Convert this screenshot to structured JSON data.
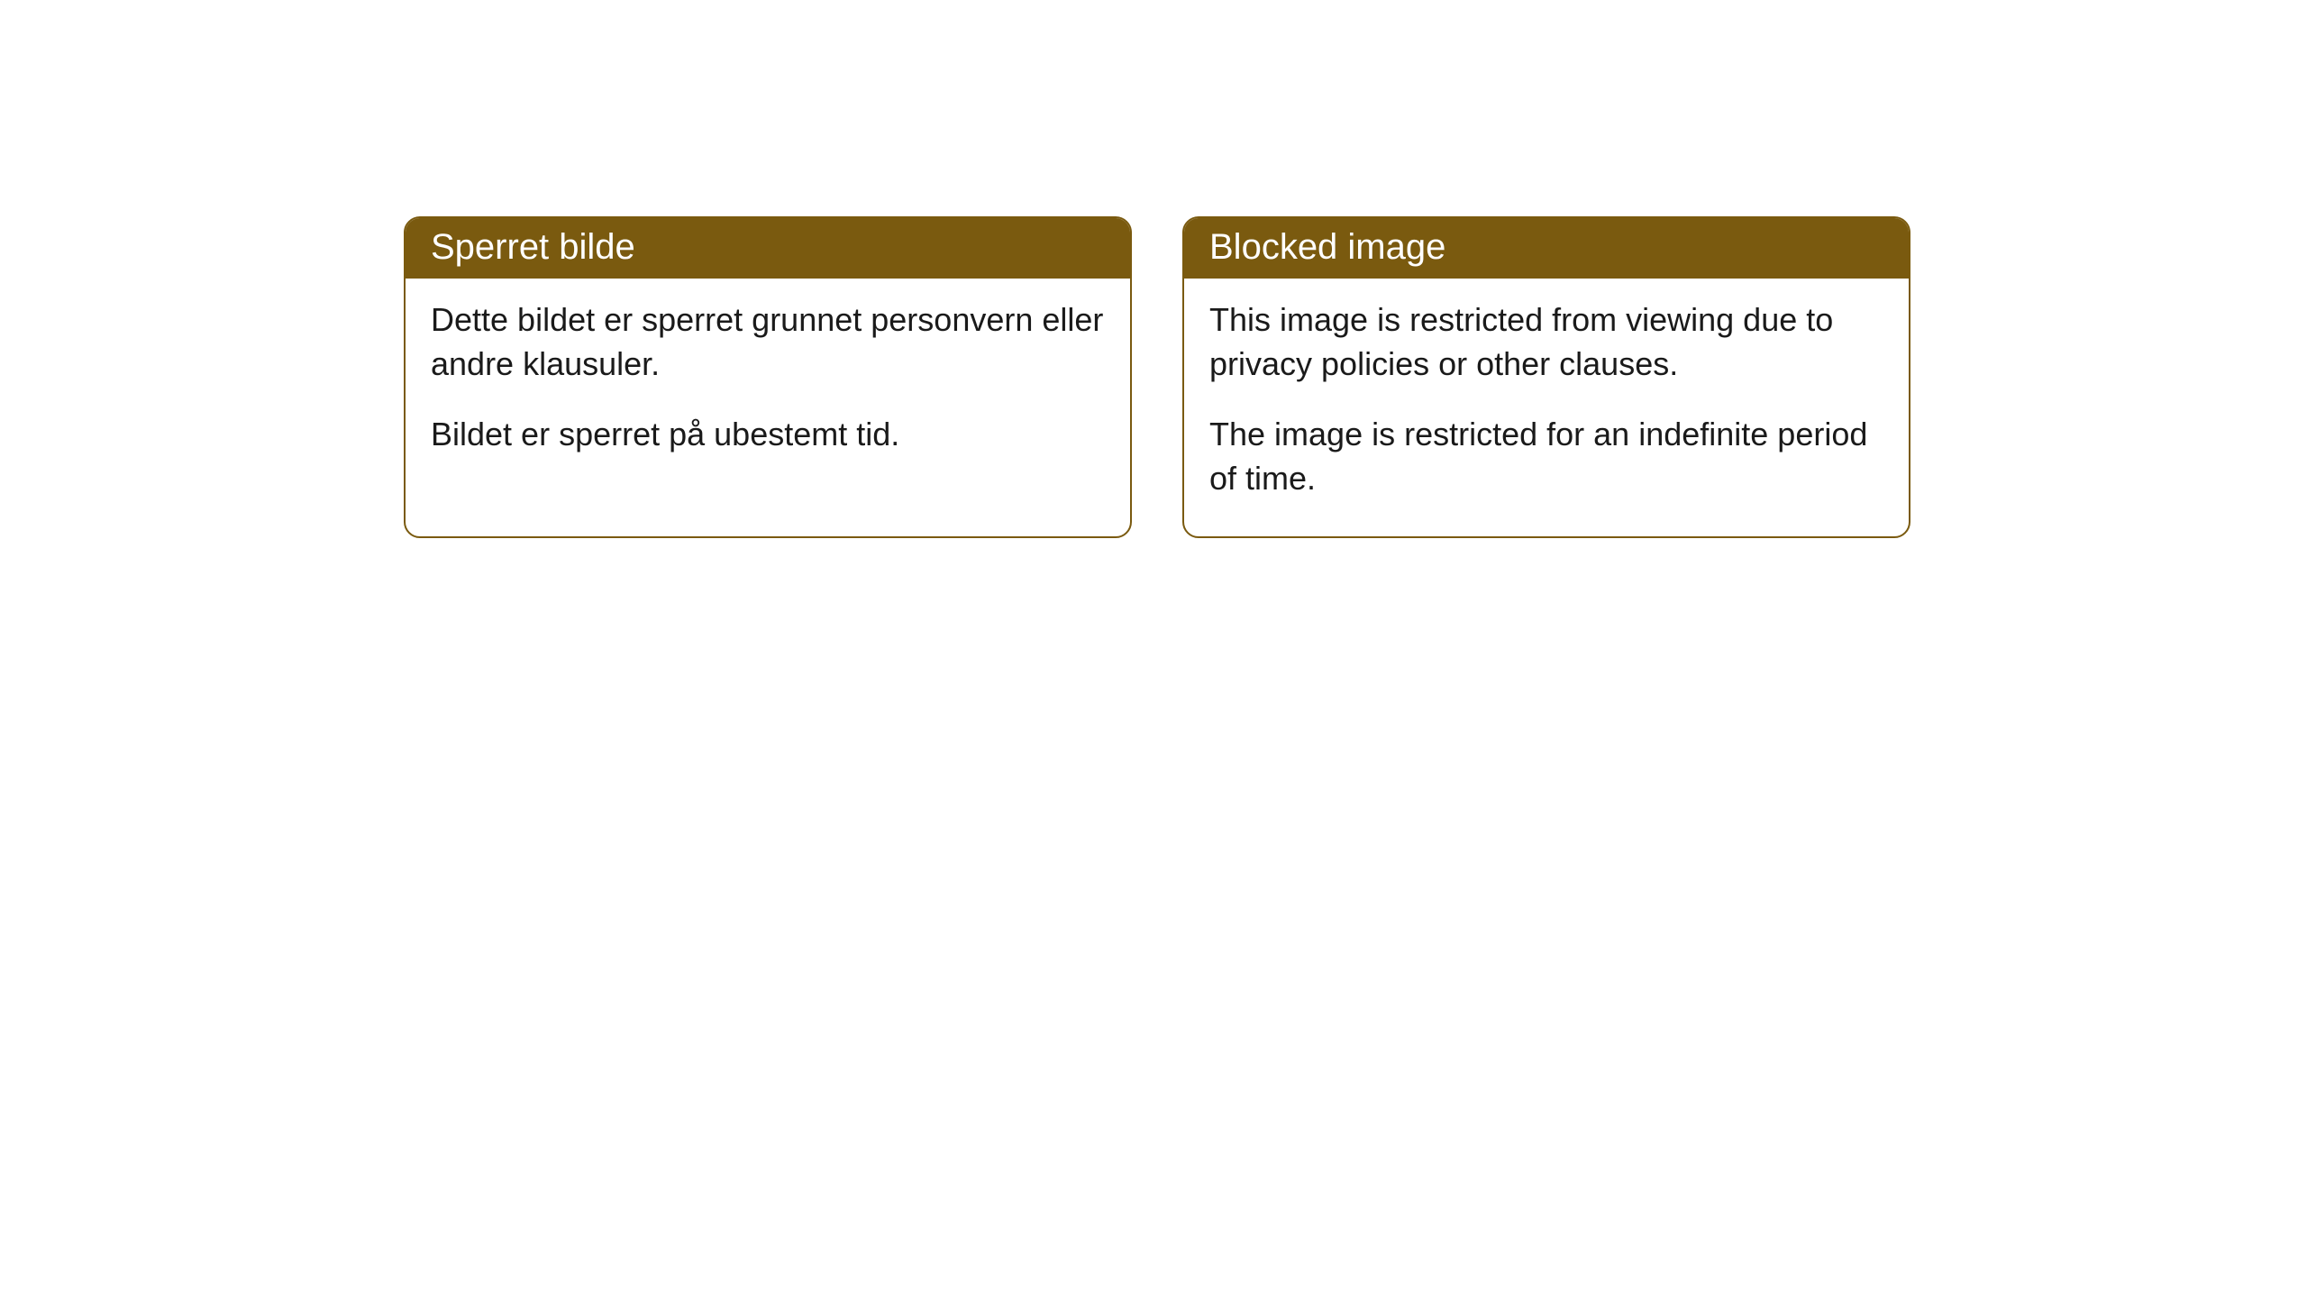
{
  "cards": [
    {
      "title": "Sperret bilde",
      "paragraph1": "Dette bildet er sperret grunnet personvern eller andre klausuler.",
      "paragraph2": "Bildet er sperret på ubestemt tid."
    },
    {
      "title": "Blocked image",
      "paragraph1": "This image is restricted from viewing due to privacy policies or other clauses.",
      "paragraph2": "The image is restricted for an indefinite period of time."
    }
  ],
  "style": {
    "header_bg": "#7a5a0f",
    "header_text_color": "#ffffff",
    "border_color": "#7a5a0f",
    "body_text_color": "#1a1a1a",
    "background_color": "#ffffff",
    "border_radius": 18,
    "header_fontsize": 40,
    "body_fontsize": 36
  }
}
